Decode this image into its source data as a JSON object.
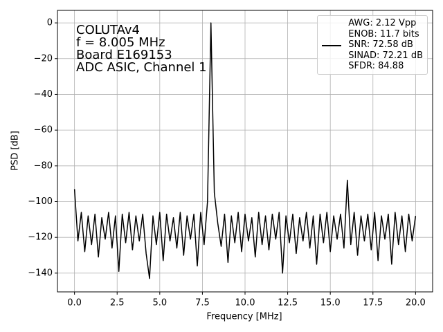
{
  "chart_data": {
    "type": "line",
    "xlabel": "Frequency [MHz]",
    "ylabel": "PSD [dB]",
    "annotation": [
      "COLUTAv4",
      "f = 8.005 MHz",
      "Board E169153",
      "ADC ASIC, Channel  1"
    ],
    "x": [
      0,
      0.2,
      0.4,
      0.6,
      0.8,
      1,
      1.2,
      1.4,
      1.6,
      1.8,
      2,
      2.2,
      2.4,
      2.6,
      2.8,
      3,
      3.2,
      3.4,
      3.6,
      3.8,
      4,
      4.2,
      4.4,
      4.6,
      4.8,
      5,
      5.2,
      5.4,
      5.6,
      5.8,
      6,
      6.2,
      6.4,
      6.6,
      6.8,
      7,
      7.2,
      7.4,
      7.6,
      7.8,
      8,
      8.2,
      8.4,
      8.6,
      8.8,
      9,
      9.2,
      9.4,
      9.6,
      9.8,
      10,
      10.2,
      10.4,
      10.6,
      10.8,
      11,
      11.2,
      11.4,
      11.6,
      11.8,
      12,
      12.2,
      12.4,
      12.6,
      12.8,
      13,
      13.2,
      13.4,
      13.6,
      13.8,
      14,
      14.2,
      14.4,
      14.6,
      14.8,
      15,
      15.2,
      15.4,
      15.6,
      15.8,
      16,
      16.2,
      16.4,
      16.6,
      16.8,
      17,
      17.2,
      17.4,
      17.6,
      17.8,
      18,
      18.2,
      18.4,
      18.6,
      18.8,
      19,
      19.2,
      19.4,
      19.6,
      19.8,
      20
    ],
    "series": [
      {
        "name": "AWG: 2.12 Vpp\nENOB: 11.7 bits\nSNR: 72.58 dB\nSINAD: 72.21 dB\nSFDR: 84.88",
        "color": "#000000",
        "values": [
          -93,
          -122,
          -106,
          -128,
          -108,
          -124,
          -107,
          -131,
          -109,
          -121,
          -106,
          -126,
          -108,
          -139,
          -107,
          -123,
          -106,
          -127,
          -108,
          -122,
          -107,
          -129,
          -143,
          -108,
          -124,
          -106,
          -133,
          -107,
          -122,
          -109,
          -126,
          -106,
          -130,
          -108,
          -121,
          -107,
          -136,
          -106,
          -124,
          -100,
          0,
          -95,
          -112,
          -125,
          -107,
          -134,
          -108,
          -123,
          -106,
          -128,
          -107,
          -122,
          -109,
          -131,
          -106,
          -124,
          -108,
          -127,
          -107,
          -121,
          -106,
          -140,
          -108,
          -123,
          -107,
          -129,
          -109,
          -122,
          -106,
          -126,
          -108,
          -135,
          -107,
          -123,
          -106,
          -128,
          -108,
          -121,
          -107,
          -126,
          -88,
          -124,
          -106,
          -130,
          -108,
          -122,
          -107,
          -127,
          -106,
          -133,
          -108,
          -121,
          -107,
          -135,
          -106,
          -124,
          -108,
          -128,
          -107,
          -122,
          -108
        ]
      }
    ],
    "xlim": [
      -1,
      21
    ],
    "ylim": [
      -150.5,
      7
    ],
    "xticks": [
      {
        "value": 0,
        "label": "0.0"
      },
      2.5,
      {
        "value": 5,
        "label": "5.0"
      },
      7.5,
      {
        "value": 10,
        "label": "10.0"
      },
      12.5,
      {
        "value": 15,
        "label": "15.0"
      },
      17.5,
      {
        "value": 20,
        "label": "20.0"
      }
    ],
    "yticks": [
      0,
      {
        "value": -20,
        "label": "−20"
      },
      {
        "value": -40,
        "label": "−40"
      },
      {
        "value": -60,
        "label": "−60"
      },
      {
        "value": -80,
        "label": "−80"
      },
      {
        "value": -100,
        "label": "−100"
      },
      {
        "value": -120,
        "label": "−120"
      },
      {
        "value": -140,
        "label": "−140"
      }
    ],
    "grid": true,
    "legend": "upper right"
  }
}
